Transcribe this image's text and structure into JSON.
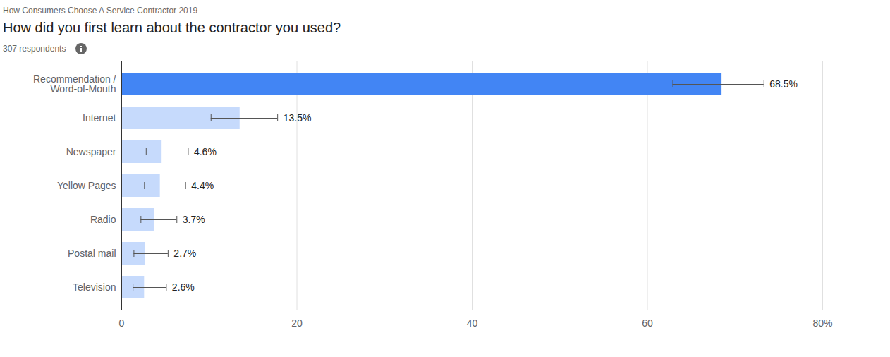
{
  "chart_data": {
    "type": "bar",
    "orientation": "horizontal",
    "supertitle": "How Consumers Choose A Service Contractor 2019",
    "title": "How did you first learn about the contractor you used?",
    "subtitle": "307 respondents",
    "categories": [
      "Recommendation / Word-of-Mouth",
      "Internet",
      "Newspaper",
      "Yellow Pages",
      "Radio",
      "Postal mail",
      "Television"
    ],
    "values": [
      68.5,
      13.5,
      4.6,
      4.4,
      3.7,
      2.7,
      2.6
    ],
    "value_labels": [
      "68.5%",
      "13.5%",
      "4.6%",
      "4.4%",
      "3.7%",
      "2.7%",
      "2.6%"
    ],
    "error_low": [
      62.9,
      10.2,
      2.8,
      2.6,
      2.2,
      1.4,
      1.3
    ],
    "error_high": [
      73.3,
      17.8,
      7.6,
      7.3,
      6.3,
      5.3,
      5.1
    ],
    "colors": [
      "#4285f4",
      "#c6dafc",
      "#c6dafc",
      "#c6dafc",
      "#c6dafc",
      "#c6dafc",
      "#c6dafc"
    ],
    "xlim": [
      0,
      80
    ],
    "xticks": [
      0,
      20,
      40,
      60,
      {
        "value": 80,
        "label": "80%"
      }
    ],
    "grid": true,
    "data_labels": true
  }
}
